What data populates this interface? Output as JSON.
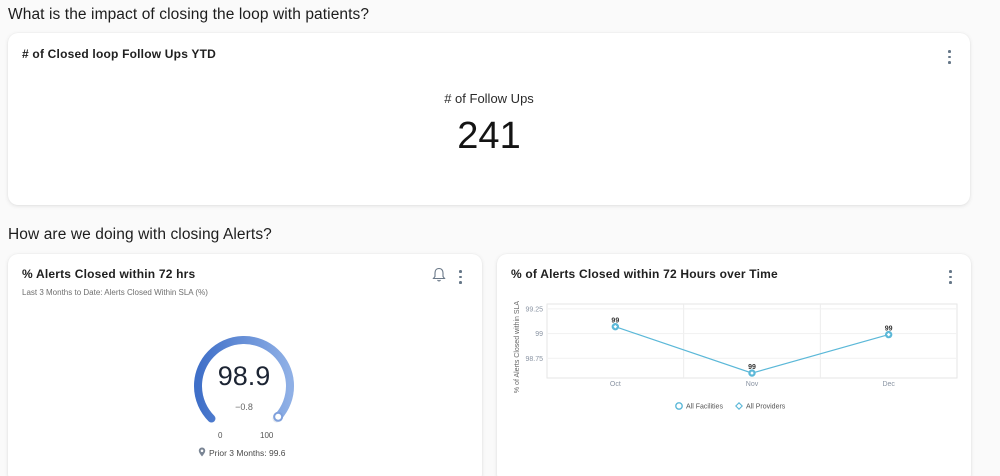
{
  "sections": {
    "patients_question": "What is the impact of closing the loop with patients?",
    "alerts_question": "How are we doing with closing Alerts?"
  },
  "kpi_card": {
    "title": "# of Closed loop Follow Ups YTD",
    "label": "# of Follow Ups",
    "value": "241"
  },
  "gauge_card": {
    "title": "% Alerts Closed within 72 hrs",
    "subtitle": "Last 3 Months to Date: Alerts Closed Within SLA (%)",
    "value": "98.9",
    "delta": "−0.8",
    "min_label": "0",
    "max_label": "100",
    "prior": "Prior 3 Months: 99.6",
    "gauge_fraction": 0.989,
    "colors": {
      "fill_start": "#3f6fc8",
      "fill_end": "#8fb0e6"
    }
  },
  "line_card": {
    "title": "% of Alerts Closed within 72 Hours over Time"
  },
  "chart_data": {
    "type": "line",
    "title": "% of Alerts Closed within 72 Hours over Time",
    "ylabel": "% of Alerts Closed within SLA",
    "xlabel": "",
    "categories": [
      "Oct",
      "Nov",
      "Dec"
    ],
    "ylim": [
      98.55,
      99.3
    ],
    "yticks": [
      "99.25",
      "99",
      "98.75"
    ],
    "ytick_values": [
      99.25,
      99.0,
      98.75
    ],
    "series": [
      {
        "name": "All Facilities",
        "values": [
          99.07,
          98.6,
          98.99
        ],
        "labels": [
          "99",
          "99",
          "99"
        ],
        "color": "#5bb8d8",
        "marker": "circle"
      },
      {
        "name": "All Providers",
        "values": [
          99.07,
          98.6,
          98.99
        ],
        "labels": [
          "99",
          "99",
          "99"
        ],
        "color": "#5bb8d8",
        "marker": "diamond"
      }
    ],
    "grid": true,
    "legend": "bottom-center"
  }
}
